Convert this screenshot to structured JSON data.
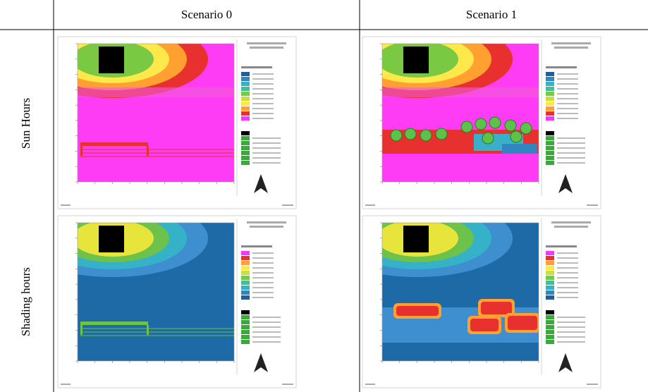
{
  "header": {
    "columns": [
      "Scenario 0",
      "Scenario 1"
    ]
  },
  "rows": [
    {
      "label": "Sun Hours"
    },
    {
      "label": "Shading hours"
    }
  ]
}
